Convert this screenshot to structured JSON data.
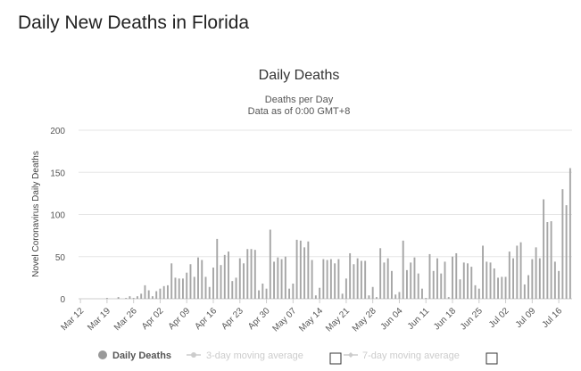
{
  "page": {
    "heading": "Daily New Deaths in Florida"
  },
  "chart_data": {
    "type": "bar",
    "title": "Daily Deaths",
    "subtitle_lines": [
      "Deaths per Day",
      "Data as of 0:00 GMT+8"
    ],
    "ylabel": "Novel Coronavirus Daily Deaths",
    "xlabel": "",
    "ylim": [
      0,
      200
    ],
    "yticks": [
      0,
      50,
      100,
      150,
      200
    ],
    "grid": true,
    "start_date": "Mar 12",
    "x_tick_labels": [
      "Mar 12",
      "Mar 19",
      "Mar 26",
      "Apr 02",
      "Apr 09",
      "Apr 16",
      "Apr 23",
      "Apr 30",
      "May 07",
      "May 14",
      "May 21",
      "May 28",
      "Jun 04",
      "Jun 11",
      "Jun 18",
      "Jun 25",
      "Jul 02",
      "Jul 09",
      "Jul 16"
    ],
    "series": [
      {
        "name": "Daily Deaths",
        "color": "#a6a6a6",
        "values": [
          0,
          0,
          0,
          0,
          0,
          0,
          0,
          1,
          0,
          0,
          2,
          0,
          1,
          3,
          1,
          3,
          6,
          16,
          10,
          3,
          9,
          12,
          15,
          16,
          42,
          25,
          24,
          24,
          31,
          41,
          26,
          49,
          46,
          26,
          14,
          37,
          71,
          40,
          52,
          56,
          21,
          25,
          48,
          42,
          59,
          59,
          58,
          10,
          18,
          12,
          82,
          44,
          49,
          47,
          50,
          12,
          18,
          70,
          69,
          61,
          68,
          46,
          4,
          13,
          47,
          46,
          47,
          42,
          47,
          6,
          24,
          54,
          41,
          48,
          45,
          45,
          4,
          14,
          2,
          60,
          43,
          48,
          33,
          5,
          8,
          69,
          34,
          43,
          49,
          30,
          12,
          1,
          53,
          33,
          48,
          30,
          44,
          2,
          50,
          54,
          23,
          43,
          42,
          38,
          16,
          12,
          63,
          44,
          43,
          36,
          25,
          26,
          26,
          56,
          48,
          63,
          67,
          17,
          28,
          47,
          61,
          48,
          118,
          91,
          92,
          44,
          33,
          130,
          111,
          155
        ]
      },
      {
        "name": "3-day moving average",
        "color": "#d0d0d0",
        "visible": false,
        "values": []
      },
      {
        "name": "7-day moving average",
        "color": "#d0d0d0",
        "visible": false,
        "values": []
      }
    ]
  },
  "legend": {
    "items": [
      {
        "label": "Daily Deaths",
        "active": true,
        "color": "#a6a6a6"
      },
      {
        "label": "3-day moving average",
        "active": false,
        "color": "#cccccc"
      },
      {
        "label": "7-day moving average",
        "active": false,
        "color": "#cccccc"
      }
    ]
  }
}
